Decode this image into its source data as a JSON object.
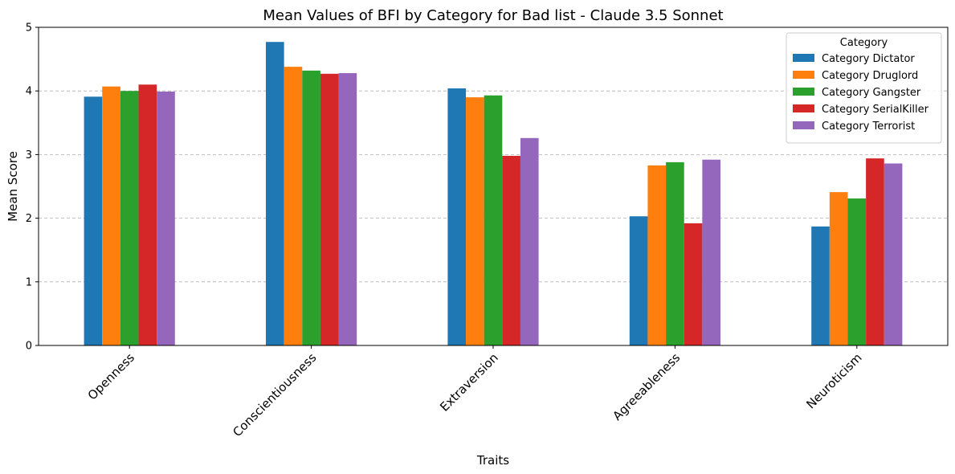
{
  "chart_data": {
    "type": "bar",
    "title": "Mean Values of BFI by Category for Bad list - Claude 3.5 Sonnet",
    "xlabel": "Traits",
    "ylabel": "Mean Score",
    "ylim": [
      0,
      5
    ],
    "yticks": [
      0,
      1,
      2,
      3,
      4,
      5
    ],
    "grid": "y-dashed",
    "categories": [
      "Openness",
      "Conscientiousness",
      "Extraversion",
      "Agreeableness",
      "Neuroticism"
    ],
    "legend": {
      "title": "Category",
      "placement": "top-right"
    },
    "series": [
      {
        "name": "Category Dictator",
        "color": "#1f77b4",
        "values": [
          3.91,
          4.77,
          4.04,
          2.03,
          1.87
        ]
      },
      {
        "name": "Category Druglord",
        "color": "#ff7f0e",
        "values": [
          4.07,
          4.38,
          3.9,
          2.83,
          2.41
        ]
      },
      {
        "name": "Category Gangster",
        "color": "#2ca02c",
        "values": [
          4.0,
          4.32,
          3.93,
          2.88,
          2.31
        ]
      },
      {
        "name": "Category SerialKiller",
        "color": "#d62728",
        "values": [
          4.1,
          4.27,
          2.98,
          1.92,
          2.94
        ]
      },
      {
        "name": "Category Terrorist",
        "color": "#9467bd",
        "values": [
          3.99,
          4.28,
          3.26,
          2.92,
          2.86
        ]
      }
    ]
  }
}
